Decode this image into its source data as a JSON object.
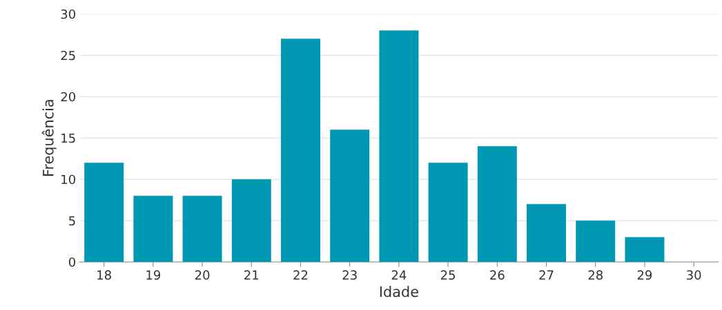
{
  "chart_data": {
    "type": "bar",
    "xlabel": "Idade",
    "ylabel": "Frequência",
    "categories": [
      "18",
      "19",
      "20",
      "21",
      "22",
      "23",
      "24",
      "25",
      "26",
      "27",
      "28",
      "29",
      "30"
    ],
    "values": [
      12,
      8,
      8,
      10,
      27,
      16,
      28,
      12,
      14,
      7,
      5,
      3,
      0
    ],
    "color": "#0097b2",
    "ylim": [
      0,
      30
    ],
    "yticks": [
      0,
      5,
      10,
      15,
      20,
      25,
      30
    ],
    "grid": "y"
  }
}
